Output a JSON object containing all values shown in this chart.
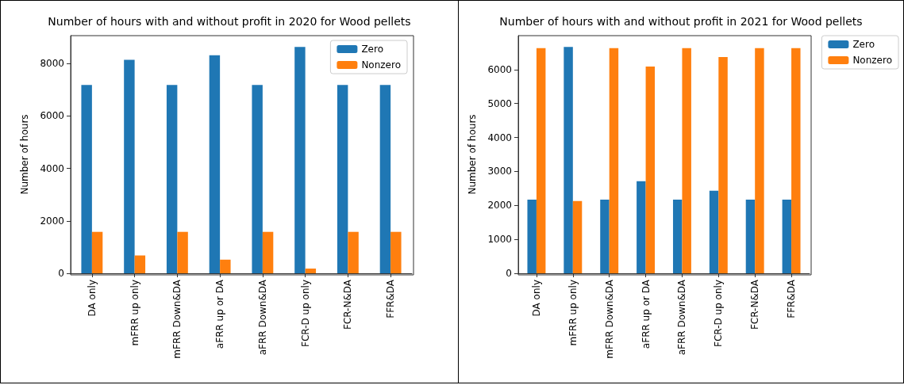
{
  "chart_data": [
    {
      "type": "bar",
      "title": "Number of hours with and without profit in 2020 for Wood pellets",
      "ylabel": "Number of hours",
      "categories": [
        "DA only",
        "mFRR up only",
        "mFRR Down&DA",
        "aFRR up or DA",
        "aFRR Down&DA",
        "FCR-D up only",
        "FCR-N&DA",
        "FFR&DA"
      ],
      "series": [
        {
          "name": "Zero",
          "color": "#1f77b4",
          "values": [
            7180,
            8140,
            7180,
            8310,
            7180,
            8630,
            7180,
            7180
          ]
        },
        {
          "name": "Nonzero",
          "color": "#ff7f0e",
          "values": [
            1580,
            680,
            1580,
            520,
            1580,
            180,
            1580,
            1580
          ]
        }
      ],
      "ylim": [
        0,
        9060
      ],
      "yticks": [
        0,
        2000,
        4000,
        6000,
        8000
      ],
      "grid": false,
      "legend": "top right"
    },
    {
      "type": "bar",
      "title": "Number of hours with and without profit in 2021 for Wood pellets",
      "ylabel": "Number of hours",
      "categories": [
        "DA only",
        "mFRR up only",
        "mFRR Down&DA",
        "aFRR up or DA",
        "aFRR Down&DA",
        "FCR-D up only",
        "FCR-N&DA",
        "FFR&DA"
      ],
      "series": [
        {
          "name": "Zero",
          "color": "#1f77b4",
          "values": [
            2170,
            6670,
            2170,
            2710,
            2170,
            2430,
            2170,
            2170
          ]
        },
        {
          "name": "Nonzero",
          "color": "#ff7f0e",
          "values": [
            6630,
            2130,
            6630,
            6090,
            6630,
            6370,
            6630,
            6630
          ]
        }
      ],
      "ylim": [
        0,
        7000
      ],
      "yticks": [
        0,
        1000,
        2000,
        3000,
        4000,
        5000,
        6000
      ],
      "grid": false,
      "legend": "top right"
    }
  ]
}
